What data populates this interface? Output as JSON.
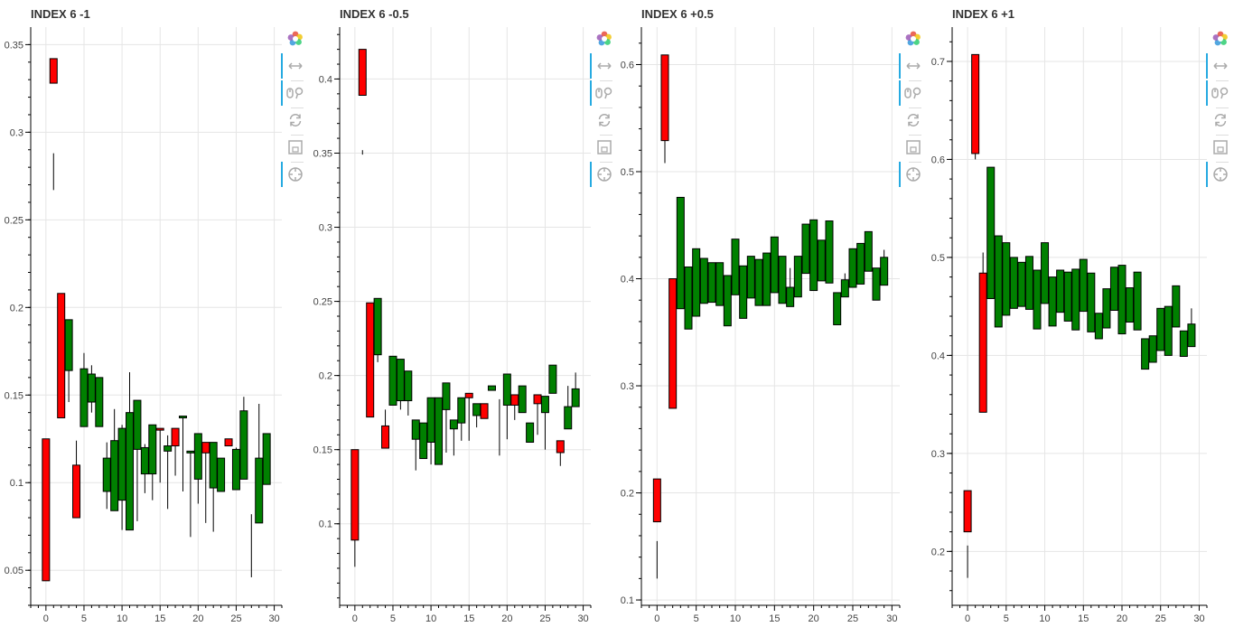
{
  "toolbar": {
    "tools": [
      {
        "name": "bokeh-logo",
        "active": false
      },
      {
        "name": "pan-tool",
        "active": true
      },
      {
        "name": "wheel-zoom-tool",
        "active": true
      },
      {
        "name": "reset-tool",
        "active": false
      },
      {
        "name": "save-tool",
        "active": false
      },
      {
        "name": "hover-tool",
        "active": true
      }
    ]
  },
  "colors": {
    "up": "#008000",
    "down": "#ff0000",
    "grid": "#e5e5e5"
  },
  "chart_data": [
    {
      "type": "candlestick",
      "title": "INDEX 6 -1",
      "xlim": [
        -2,
        31
      ],
      "ylim": [
        0.03,
        0.36
      ],
      "xticks": [
        0,
        5,
        10,
        15,
        20,
        25,
        30
      ],
      "yticks": [
        0.05,
        0.1,
        0.15,
        0.2,
        0.25,
        0.3,
        0.35
      ],
      "candles": [
        {
          "x": 0,
          "o": 0.125,
          "c": 0.044,
          "h": 0.125,
          "l": 0.044
        },
        {
          "x": 1,
          "o": 0.342,
          "c": 0.328,
          "h": 0.342,
          "l": 0.328
        },
        {
          "x": 1,
          "o": 0.288,
          "c": 0.288,
          "h": 0.288,
          "l": 0.267
        },
        {
          "x": 2,
          "o": 0.208,
          "c": 0.137,
          "h": 0.208,
          "l": 0.137
        },
        {
          "x": 3,
          "o": 0.164,
          "c": 0.193,
          "h": 0.193,
          "l": 0.146
        },
        {
          "x": 4,
          "o": 0.11,
          "c": 0.08,
          "h": 0.124,
          "l": 0.08
        },
        {
          "x": 5,
          "o": 0.132,
          "c": 0.165,
          "h": 0.174,
          "l": 0.132
        },
        {
          "x": 6,
          "o": 0.146,
          "c": 0.162,
          "h": 0.167,
          "l": 0.14
        },
        {
          "x": 7,
          "o": 0.132,
          "c": 0.16,
          "h": 0.16,
          "l": 0.132
        },
        {
          "x": 8,
          "o": 0.095,
          "c": 0.114,
          "h": 0.123,
          "l": 0.085
        },
        {
          "x": 9,
          "o": 0.084,
          "c": 0.124,
          "h": 0.142,
          "l": 0.084
        },
        {
          "x": 10,
          "o": 0.09,
          "c": 0.131,
          "h": 0.133,
          "l": 0.073
        },
        {
          "x": 11,
          "o": 0.073,
          "c": 0.14,
          "h": 0.163,
          "l": 0.073
        },
        {
          "x": 12,
          "o": 0.119,
          "c": 0.147,
          "h": 0.147,
          "l": 0.078
        },
        {
          "x": 13,
          "o": 0.105,
          "c": 0.12,
          "h": 0.122,
          "l": 0.094
        },
        {
          "x": 14,
          "o": 0.105,
          "c": 0.133,
          "h": 0.133,
          "l": 0.09
        },
        {
          "x": 15,
          "o": 0.131,
          "c": 0.13,
          "h": 0.131,
          "l": 0.1
        },
        {
          "x": 16,
          "o": 0.118,
          "c": 0.121,
          "h": 0.127,
          "l": 0.085
        },
        {
          "x": 17,
          "o": 0.131,
          "c": 0.121,
          "h": 0.131,
          "l": 0.104
        },
        {
          "x": 18,
          "o": 0.137,
          "c": 0.138,
          "h": 0.138,
          "l": 0.095
        },
        {
          "x": 19,
          "o": 0.117,
          "c": 0.118,
          "h": 0.118,
          "l": 0.069
        },
        {
          "x": 20,
          "o": 0.102,
          "c": 0.128,
          "h": 0.128,
          "l": 0.088
        },
        {
          "x": 21,
          "o": 0.123,
          "c": 0.117,
          "h": 0.123,
          "l": 0.077
        },
        {
          "x": 22,
          "o": 0.097,
          "c": 0.123,
          "h": 0.123,
          "l": 0.072
        },
        {
          "x": 23,
          "o": 0.095,
          "c": 0.114,
          "h": 0.114,
          "l": 0.095
        },
        {
          "x": 24,
          "o": 0.125,
          "c": 0.121,
          "h": 0.125,
          "l": 0.121
        },
        {
          "x": 25,
          "o": 0.096,
          "c": 0.119,
          "h": 0.12,
          "l": 0.096
        },
        {
          "x": 26,
          "o": 0.102,
          "c": 0.141,
          "h": 0.149,
          "l": 0.102
        },
        {
          "x": 27,
          "o": 0.059,
          "c": 0.059,
          "h": 0.082,
          "l": 0.046
        },
        {
          "x": 28,
          "o": 0.077,
          "c": 0.114,
          "h": 0.145,
          "l": 0.077
        },
        {
          "x": 29,
          "o": 0.099,
          "c": 0.128,
          "h": 0.128,
          "l": 0.099
        }
      ]
    },
    {
      "type": "candlestick",
      "title": "INDEX 6 -0.5",
      "xlim": [
        -2,
        31
      ],
      "ylim": [
        0.045,
        0.435
      ],
      "xticks": [
        0,
        5,
        10,
        15,
        20,
        25,
        30
      ],
      "yticks": [
        0.1,
        0.15,
        0.2,
        0.25,
        0.3,
        0.35,
        0.4
      ],
      "candles": [
        {
          "x": 0,
          "o": 0.15,
          "c": 0.089,
          "h": 0.15,
          "l": 0.071
        },
        {
          "x": 1,
          "o": 0.42,
          "c": 0.389,
          "h": 0.42,
          "l": 0.389
        },
        {
          "x": 1,
          "o": 0.352,
          "c": 0.352,
          "h": 0.352,
          "l": 0.349
        },
        {
          "x": 2,
          "o": 0.249,
          "c": 0.172,
          "h": 0.249,
          "l": 0.172
        },
        {
          "x": 3,
          "o": 0.214,
          "c": 0.252,
          "h": 0.252,
          "l": 0.209
        },
        {
          "x": 4,
          "o": 0.166,
          "c": 0.151,
          "h": 0.177,
          "l": 0.151
        },
        {
          "x": 5,
          "o": 0.18,
          "c": 0.213,
          "h": 0.213,
          "l": 0.18
        },
        {
          "x": 6,
          "o": 0.183,
          "c": 0.211,
          "h": 0.211,
          "l": 0.177
        },
        {
          "x": 7,
          "o": 0.183,
          "c": 0.203,
          "h": 0.203,
          "l": 0.173
        },
        {
          "x": 8,
          "o": 0.157,
          "c": 0.17,
          "h": 0.17,
          "l": 0.136
        },
        {
          "x": 9,
          "o": 0.144,
          "c": 0.168,
          "h": 0.168,
          "l": 0.144
        },
        {
          "x": 10,
          "o": 0.155,
          "c": 0.185,
          "h": 0.185,
          "l": 0.14
        },
        {
          "x": 11,
          "o": 0.14,
          "c": 0.185,
          "h": 0.185,
          "l": 0.14
        },
        {
          "x": 12,
          "o": 0.177,
          "c": 0.195,
          "h": 0.195,
          "l": 0.148
        },
        {
          "x": 13,
          "o": 0.164,
          "c": 0.17,
          "h": 0.17,
          "l": 0.146
        },
        {
          "x": 14,
          "o": 0.168,
          "c": 0.185,
          "h": 0.185,
          "l": 0.156
        },
        {
          "x": 15,
          "o": 0.188,
          "c": 0.185,
          "h": 0.188,
          "l": 0.156
        },
        {
          "x": 16,
          "o": 0.173,
          "c": 0.181,
          "h": 0.181,
          "l": 0.165
        },
        {
          "x": 17,
          "o": 0.181,
          "c": 0.171,
          "h": 0.181,
          "l": 0.171
        },
        {
          "x": 18,
          "o": 0.19,
          "c": 0.193,
          "h": 0.193,
          "l": 0.19
        },
        {
          "x": 19,
          "o": 0.184,
          "c": 0.184,
          "h": 0.184,
          "l": 0.146
        },
        {
          "x": 20,
          "o": 0.18,
          "c": 0.201,
          "h": 0.201,
          "l": 0.157
        },
        {
          "x": 21,
          "o": 0.187,
          "c": 0.18,
          "h": 0.187,
          "l": 0.17
        },
        {
          "x": 22,
          "o": 0.175,
          "c": 0.193,
          "h": 0.193,
          "l": 0.175
        },
        {
          "x": 23,
          "o": 0.155,
          "c": 0.168,
          "h": 0.168,
          "l": 0.155
        },
        {
          "x": 24,
          "o": 0.187,
          "c": 0.181,
          "h": 0.187,
          "l": 0.16
        },
        {
          "x": 25,
          "o": 0.175,
          "c": 0.186,
          "h": 0.186,
          "l": 0.15
        },
        {
          "x": 26,
          "o": 0.188,
          "c": 0.207,
          "h": 0.207,
          "l": 0.188
        },
        {
          "x": 27,
          "o": 0.156,
          "c": 0.148,
          "h": 0.156,
          "l": 0.139
        },
        {
          "x": 28,
          "o": 0.164,
          "c": 0.179,
          "h": 0.193,
          "l": 0.164
        },
        {
          "x": 29,
          "o": 0.179,
          "c": 0.191,
          "h": 0.202,
          "l": 0.179
        }
      ]
    },
    {
      "type": "candlestick",
      "title": "INDEX 6 +0.5",
      "xlim": [
        -2,
        31
      ],
      "ylim": [
        0.095,
        0.635
      ],
      "xticks": [
        0,
        5,
        10,
        15,
        20,
        25,
        30
      ],
      "yticks": [
        0.1,
        0.2,
        0.3,
        0.4,
        0.5,
        0.6
      ],
      "candles": [
        {
          "x": 0,
          "o": 0.213,
          "c": 0.173,
          "h": 0.213,
          "l": 0.173
        },
        {
          "x": 0,
          "o": 0.155,
          "c": 0.155,
          "h": 0.155,
          "l": 0.12
        },
        {
          "x": 1,
          "o": 0.609,
          "c": 0.529,
          "h": 0.609,
          "l": 0.508
        },
        {
          "x": 2,
          "o": 0.4,
          "c": 0.279,
          "h": 0.4,
          "l": 0.279
        },
        {
          "x": 3,
          "o": 0.372,
          "c": 0.476,
          "h": 0.476,
          "l": 0.372
        },
        {
          "x": 4,
          "o": 0.353,
          "c": 0.411,
          "h": 0.411,
          "l": 0.353
        },
        {
          "x": 5,
          "o": 0.365,
          "c": 0.428,
          "h": 0.428,
          "l": 0.365
        },
        {
          "x": 6,
          "o": 0.377,
          "c": 0.419,
          "h": 0.419,
          "l": 0.377
        },
        {
          "x": 7,
          "o": 0.378,
          "c": 0.415,
          "h": 0.415,
          "l": 0.378
        },
        {
          "x": 8,
          "o": 0.375,
          "c": 0.415,
          "h": 0.415,
          "l": 0.375
        },
        {
          "x": 9,
          "o": 0.356,
          "c": 0.403,
          "h": 0.403,
          "l": 0.356
        },
        {
          "x": 10,
          "o": 0.385,
          "c": 0.437,
          "h": 0.437,
          "l": 0.385
        },
        {
          "x": 11,
          "o": 0.363,
          "c": 0.412,
          "h": 0.412,
          "l": 0.363
        },
        {
          "x": 12,
          "o": 0.382,
          "c": 0.421,
          "h": 0.421,
          "l": 0.382
        },
        {
          "x": 13,
          "o": 0.375,
          "c": 0.418,
          "h": 0.418,
          "l": 0.375
        },
        {
          "x": 14,
          "o": 0.375,
          "c": 0.424,
          "h": 0.424,
          "l": 0.375
        },
        {
          "x": 15,
          "o": 0.387,
          "c": 0.439,
          "h": 0.439,
          "l": 0.387
        },
        {
          "x": 16,
          "o": 0.377,
          "c": 0.421,
          "h": 0.421,
          "l": 0.377
        },
        {
          "x": 17,
          "o": 0.374,
          "c": 0.392,
          "h": 0.41,
          "l": 0.374
        },
        {
          "x": 18,
          "o": 0.383,
          "c": 0.421,
          "h": 0.421,
          "l": 0.383
        },
        {
          "x": 19,
          "o": 0.405,
          "c": 0.451,
          "h": 0.451,
          "l": 0.405
        },
        {
          "x": 20,
          "o": 0.389,
          "c": 0.455,
          "h": 0.455,
          "l": 0.389
        },
        {
          "x": 21,
          "o": 0.398,
          "c": 0.436,
          "h": 0.436,
          "l": 0.398
        },
        {
          "x": 22,
          "o": 0.396,
          "c": 0.454,
          "h": 0.454,
          "l": 0.396
        },
        {
          "x": 23,
          "o": 0.357,
          "c": 0.387,
          "h": 0.387,
          "l": 0.357
        },
        {
          "x": 24,
          "o": 0.383,
          "c": 0.399,
          "h": 0.405,
          "l": 0.383
        },
        {
          "x": 25,
          "o": 0.392,
          "c": 0.428,
          "h": 0.428,
          "l": 0.392
        },
        {
          "x": 26,
          "o": 0.395,
          "c": 0.433,
          "h": 0.433,
          "l": 0.395
        },
        {
          "x": 27,
          "o": 0.407,
          "c": 0.444,
          "h": 0.444,
          "l": 0.407
        },
        {
          "x": 28,
          "o": 0.38,
          "c": 0.41,
          "h": 0.41,
          "l": 0.38
        },
        {
          "x": 29,
          "o": 0.394,
          "c": 0.42,
          "h": 0.427,
          "l": 0.394
        }
      ]
    },
    {
      "type": "candlestick",
      "title": "INDEX 6 +1",
      "xlim": [
        -2,
        31
      ],
      "ylim": [
        0.145,
        0.735
      ],
      "xticks": [
        0,
        5,
        10,
        15,
        20,
        25,
        30
      ],
      "yticks": [
        0.2,
        0.3,
        0.4,
        0.5,
        0.6,
        0.7
      ],
      "candles": [
        {
          "x": 0,
          "o": 0.262,
          "c": 0.22,
          "h": 0.262,
          "l": 0.22
        },
        {
          "x": 0,
          "o": 0.206,
          "c": 0.206,
          "h": 0.206,
          "l": 0.173
        },
        {
          "x": 1,
          "o": 0.707,
          "c": 0.606,
          "h": 0.707,
          "l": 0.6
        },
        {
          "x": 2,
          "o": 0.484,
          "c": 0.342,
          "h": 0.505,
          "l": 0.342
        },
        {
          "x": 3,
          "o": 0.458,
          "c": 0.592,
          "h": 0.592,
          "l": 0.458
        },
        {
          "x": 4,
          "o": 0.429,
          "c": 0.522,
          "h": 0.522,
          "l": 0.429
        },
        {
          "x": 5,
          "o": 0.441,
          "c": 0.515,
          "h": 0.515,
          "l": 0.441
        },
        {
          "x": 6,
          "o": 0.448,
          "c": 0.5,
          "h": 0.5,
          "l": 0.448
        },
        {
          "x": 7,
          "o": 0.45,
          "c": 0.495,
          "h": 0.495,
          "l": 0.45
        },
        {
          "x": 8,
          "o": 0.447,
          "c": 0.501,
          "h": 0.501,
          "l": 0.447
        },
        {
          "x": 9,
          "o": 0.427,
          "c": 0.487,
          "h": 0.487,
          "l": 0.427
        },
        {
          "x": 10,
          "o": 0.453,
          "c": 0.515,
          "h": 0.515,
          "l": 0.453
        },
        {
          "x": 11,
          "o": 0.43,
          "c": 0.48,
          "h": 0.48,
          "l": 0.43
        },
        {
          "x": 12,
          "o": 0.444,
          "c": 0.487,
          "h": 0.487,
          "l": 0.444
        },
        {
          "x": 13,
          "o": 0.435,
          "c": 0.485,
          "h": 0.485,
          "l": 0.435
        },
        {
          "x": 14,
          "o": 0.426,
          "c": 0.488,
          "h": 0.488,
          "l": 0.426
        },
        {
          "x": 15,
          "o": 0.445,
          "c": 0.498,
          "h": 0.498,
          "l": 0.445
        },
        {
          "x": 16,
          "o": 0.424,
          "c": 0.484,
          "h": 0.484,
          "l": 0.424
        },
        {
          "x": 17,
          "o": 0.417,
          "c": 0.443,
          "h": 0.443,
          "l": 0.417
        },
        {
          "x": 18,
          "o": 0.428,
          "c": 0.468,
          "h": 0.468,
          "l": 0.428
        },
        {
          "x": 19,
          "o": 0.446,
          "c": 0.49,
          "h": 0.49,
          "l": 0.446
        },
        {
          "x": 20,
          "o": 0.422,
          "c": 0.492,
          "h": 0.492,
          "l": 0.422
        },
        {
          "x": 21,
          "o": 0.434,
          "c": 0.469,
          "h": 0.469,
          "l": 0.434
        },
        {
          "x": 22,
          "o": 0.426,
          "c": 0.485,
          "h": 0.485,
          "l": 0.426
        },
        {
          "x": 23,
          "o": 0.386,
          "c": 0.417,
          "h": 0.417,
          "l": 0.386
        },
        {
          "x": 24,
          "o": 0.393,
          "c": 0.42,
          "h": 0.42,
          "l": 0.393
        },
        {
          "x": 25,
          "o": 0.405,
          "c": 0.448,
          "h": 0.448,
          "l": 0.405
        },
        {
          "x": 26,
          "o": 0.4,
          "c": 0.45,
          "h": 0.45,
          "l": 0.4
        },
        {
          "x": 27,
          "o": 0.429,
          "c": 0.471,
          "h": 0.471,
          "l": 0.429
        },
        {
          "x": 28,
          "o": 0.399,
          "c": 0.425,
          "h": 0.425,
          "l": 0.399
        },
        {
          "x": 29,
          "o": 0.409,
          "c": 0.432,
          "h": 0.448,
          "l": 0.409
        }
      ]
    }
  ]
}
